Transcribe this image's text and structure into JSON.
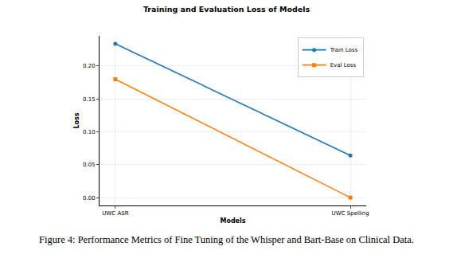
{
  "chart_data": {
    "type": "line",
    "title": "Training and Evaluation Loss of Models",
    "caption": "Figure 4: Performance Metrics of Fine Tuning of the Whisper and Bart-Base on Clinical Data.",
    "x_label": "Models",
    "y_label": "Loss",
    "categories": [
      "UWC ASR",
      "UWC Spelling"
    ],
    "series": [
      {
        "name": "Train Loss",
        "color": "#1f77b4",
        "marker": "circle",
        "values": [
          0.234,
          0.064
        ]
      },
      {
        "name": "Eval Loss",
        "color": "#ff7f0e",
        "marker": "square",
        "values": [
          0.18,
          0.0
        ]
      }
    ],
    "ylim": [
      -0.012,
      0.246
    ],
    "yticks": [
      {
        "value": 0,
        "label": "0.00"
      },
      {
        "value": 0.05,
        "label": "0.05"
      },
      {
        "value": 0.1,
        "label": "0.10"
      },
      {
        "value": 0.15,
        "label": "0.15"
      },
      {
        "value": 0.2,
        "label": "0.20"
      }
    ],
    "grid": true,
    "legend": "upper right"
  }
}
